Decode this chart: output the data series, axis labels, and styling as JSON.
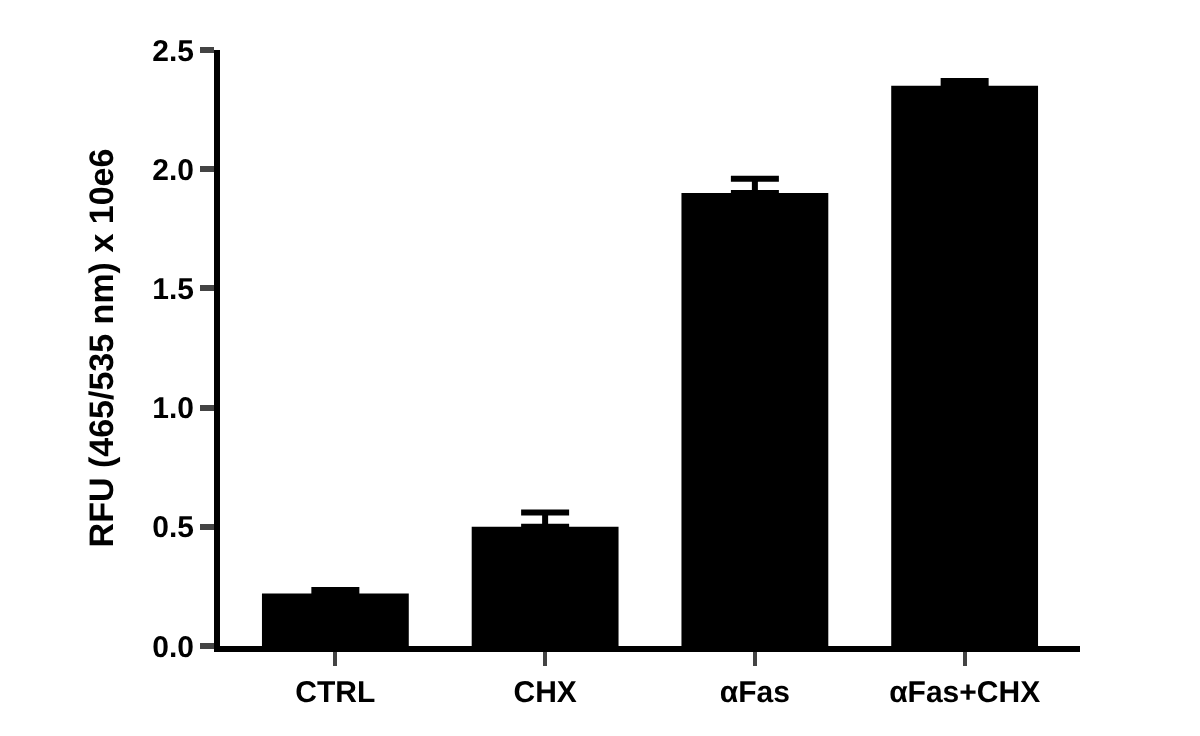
{
  "chart_data": {
    "type": "bar",
    "ylabel": "RFU (465/535 nm) x 10e6",
    "categories": [
      "CTRL",
      "CHX",
      "αFas",
      "αFas+CHX"
    ],
    "values": [
      0.22,
      0.5,
      1.9,
      2.35
    ],
    "errors": [
      [
        0.22,
        0.235
      ],
      [
        0.5,
        0.56
      ],
      [
        1.9,
        1.96
      ],
      [
        2.35,
        2.37
      ]
    ],
    "color": "#000000",
    "ylim": [
      0,
      2.5
    ],
    "yticks": [
      {
        "value": 0,
        "label": "0.0"
      },
      0.5,
      {
        "value": 1,
        "label": "1.0"
      },
      1.5,
      {
        "value": 2,
        "label": "2.0"
      },
      2.5
    ],
    "legend": false
  }
}
